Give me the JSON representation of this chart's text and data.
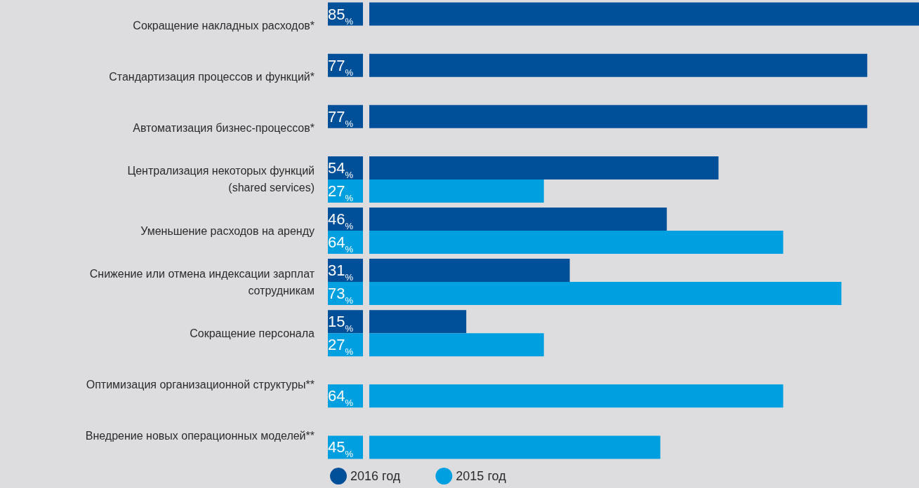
{
  "chart_data": {
    "type": "bar",
    "orientation": "horizontal",
    "data_labels": true,
    "legend": "bottom",
    "categories": [
      "Сокращение накладных расходов*",
      "Стандартизация процессов и функций*",
      "Автоматизация бизнес-процессов*",
      "Централизация некоторых функций\n(shared services)",
      "Уменьшение расходов на аренду",
      "Снижение или отмена индексации зарплат\nсотрудникам",
      "Сокращение персонала",
      "Оптимизация организационной структуры**",
      "Внедрение новых операционных моделей**"
    ],
    "series": [
      {
        "name": "2016 год",
        "color": "#004f99",
        "values": [
          85,
          77,
          77,
          54,
          46,
          31,
          15,
          null,
          null
        ],
        "value_labels": [
          "85%",
          "77%",
          "77%",
          "54%",
          "46%",
          "31%",
          "15%",
          null,
          null
        ]
      },
      {
        "name": "2015 год",
        "color": "#009fdf",
        "values": [
          null,
          null,
          null,
          27,
          64,
          73,
          27,
          64,
          45
        ],
        "value_labels": [
          null,
          null,
          null,
          "27%",
          "64%",
          "73%",
          "27%",
          "64%",
          "45%"
        ]
      }
    ]
  }
}
